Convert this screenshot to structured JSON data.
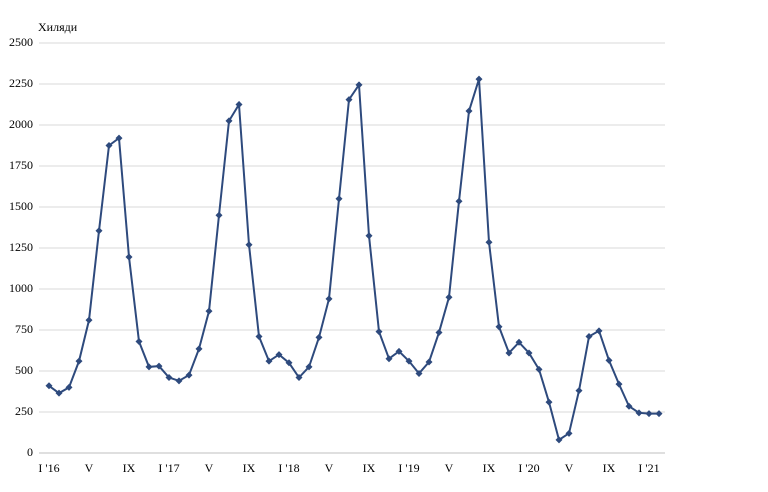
{
  "chart_data": {
    "type": "line",
    "unit_label": "Хиляди",
    "categories": [
      "I '16",
      null,
      null,
      null,
      "V",
      null,
      null,
      null,
      "IX",
      null,
      null,
      null,
      "I '17",
      null,
      null,
      null,
      "V",
      null,
      null,
      null,
      "IX",
      null,
      null,
      null,
      "I '18",
      null,
      null,
      null,
      "V",
      null,
      null,
      null,
      "IX",
      null,
      null,
      null,
      "I '19",
      null,
      null,
      null,
      "V",
      null,
      null,
      null,
      "IX",
      null,
      null,
      null,
      "I '20",
      null,
      null,
      null,
      "V",
      null,
      null,
      null,
      "IX",
      null,
      null,
      null,
      "I '21",
      null
    ],
    "values": [
      410,
      365,
      400,
      560,
      810,
      1355,
      1875,
      1920,
      1195,
      680,
      525,
      530,
      460,
      440,
      475,
      635,
      865,
      1450,
      2025,
      2125,
      1270,
      710,
      560,
      600,
      550,
      460,
      525,
      705,
      940,
      1550,
      2155,
      2245,
      1325,
      740,
      575,
      620,
      560,
      485,
      555,
      735,
      950,
      1535,
      2085,
      2280,
      1285,
      770,
      610,
      675,
      610,
      510,
      310,
      80,
      120,
      380,
      710,
      745,
      565,
      420,
      285,
      245,
      240,
      240
    ],
    "color": "#2e4a7d",
    "ylim": [
      0,
      2500
    ],
    "yticks": [
      0,
      250,
      500,
      750,
      1000,
      1250,
      1500,
      1750,
      2000,
      2250,
      2500
    ],
    "grid": true
  }
}
